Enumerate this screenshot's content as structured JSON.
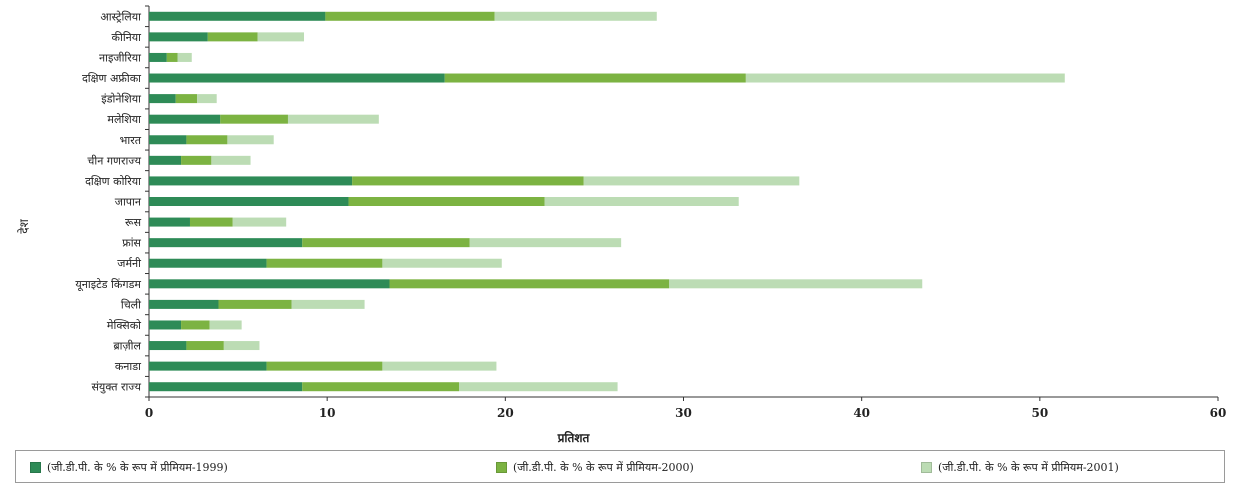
{
  "chart_data": {
    "type": "bar",
    "orientation": "horizontal",
    "stacked": true,
    "categories": [
      "आस्ट्रेलिया",
      "कीनिया",
      "नाइजीरिया",
      "दक्षिण अफ्रीका",
      "इंडोनेशिया",
      "मलेशिया",
      "भारत",
      "चीन गणराज्य",
      "दक्षिण कोरिया",
      "जापान",
      "रूस",
      "फ्रांस",
      "जर्मनी",
      "यूनाइटेड किंगडम",
      "चिली",
      "मेक्सिको",
      "ब्राज़ील",
      "कनाडा",
      "संयुक्त राज्य"
    ],
    "series": [
      {
        "name": "(जी.डी.पी. के % के रूप में प्रीमियम-1999)",
        "color": "#2e8b57",
        "values": [
          9.9,
          3.3,
          1.0,
          16.6,
          1.5,
          4.0,
          2.1,
          1.8,
          11.4,
          11.2,
          2.3,
          8.6,
          6.6,
          13.5,
          3.9,
          1.8,
          2.1,
          6.6,
          8.6
        ]
      },
      {
        "name": "(जी.डी.पी. के % के रूप में प्रीमियम-2000)",
        "color": "#7cb342",
        "values": [
          9.5,
          2.8,
          0.6,
          16.9,
          1.2,
          3.8,
          2.3,
          1.7,
          13.0,
          11.0,
          2.4,
          9.4,
          6.5,
          15.7,
          4.1,
          1.6,
          2.1,
          6.5,
          8.8
        ]
      },
      {
        "name": "(जी.डी.पी. के % के रूप में प्रीमियम-2001)",
        "color": "#bcdcb4",
        "values": [
          9.1,
          2.6,
          0.8,
          17.9,
          1.1,
          5.1,
          2.6,
          2.2,
          12.1,
          10.9,
          3.0,
          8.5,
          6.7,
          14.2,
          4.1,
          1.8,
          2.0,
          6.4,
          8.9
        ]
      }
    ],
    "xlim": [
      0,
      60
    ],
    "xticks": [
      "0",
      "10",
      "20",
      "30",
      "40",
      "50",
      "60"
    ],
    "xlabel": "प्रतिशत",
    "ylabel": "देश",
    "grid": false,
    "legend_position": "bottom"
  }
}
